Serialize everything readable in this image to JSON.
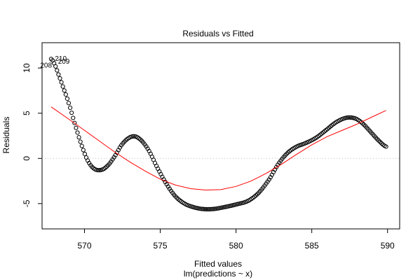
{
  "chart_data": {
    "type": "scatter",
    "title": "Residuals vs Fitted",
    "xlabel": "Fitted values",
    "subtitle": "lm(predictions ~ x)",
    "ylabel": "Residuals",
    "xlim": [
      567.2,
      590.8
    ],
    "ylim": [
      -7.8,
      12.8
    ],
    "xticks": [
      570,
      575,
      580,
      585,
      590
    ],
    "yticks": [
      -5,
      0,
      5,
      10
    ],
    "reference_line": {
      "y": 0,
      "color": "#bbbbbb",
      "style": "dotted"
    },
    "point_color": "#000000",
    "smooth_color": "#ff0000",
    "curve_knots": [
      {
        "x": 567.8,
        "y": 11.0
      },
      {
        "x": 568.0,
        "y": 10.5
      },
      {
        "x": 568.3,
        "y": 9.2
      },
      {
        "x": 568.6,
        "y": 7.8
      },
      {
        "x": 569.0,
        "y": 5.9
      },
      {
        "x": 569.4,
        "y": 3.6
      },
      {
        "x": 569.8,
        "y": 1.5
      },
      {
        "x": 570.2,
        "y": -0.2
      },
      {
        "x": 570.6,
        "y": -1.1
      },
      {
        "x": 571.0,
        "y": -1.3
      },
      {
        "x": 571.4,
        "y": -1.0
      },
      {
        "x": 571.9,
        "y": 0.0
      },
      {
        "x": 572.5,
        "y": 1.6
      },
      {
        "x": 573.1,
        "y": 2.4
      },
      {
        "x": 573.6,
        "y": 2.2
      },
      {
        "x": 574.2,
        "y": 1.0
      },
      {
        "x": 574.8,
        "y": -1.0
      },
      {
        "x": 575.4,
        "y": -2.8
      },
      {
        "x": 576.0,
        "y": -4.2
      },
      {
        "x": 576.6,
        "y": -5.0
      },
      {
        "x": 577.2,
        "y": -5.4
      },
      {
        "x": 577.8,
        "y": -5.6
      },
      {
        "x": 578.5,
        "y": -5.6
      },
      {
        "x": 579.2,
        "y": -5.4
      },
      {
        "x": 580.0,
        "y": -5.1
      },
      {
        "x": 580.8,
        "y": -4.7
      },
      {
        "x": 581.5,
        "y": -3.8
      },
      {
        "x": 582.2,
        "y": -2.3
      },
      {
        "x": 582.8,
        "y": -0.6
      },
      {
        "x": 583.4,
        "y": 0.6
      },
      {
        "x": 584.0,
        "y": 1.3
      },
      {
        "x": 584.6,
        "y": 1.7
      },
      {
        "x": 585.3,
        "y": 2.3
      },
      {
        "x": 586.0,
        "y": 3.2
      },
      {
        "x": 586.6,
        "y": 4.0
      },
      {
        "x": 587.3,
        "y": 4.5
      },
      {
        "x": 587.9,
        "y": 4.4
      },
      {
        "x": 588.4,
        "y": 3.8
      },
      {
        "x": 588.9,
        "y": 2.9
      },
      {
        "x": 589.4,
        "y": 2.0
      },
      {
        "x": 589.9,
        "y": 1.3
      }
    ],
    "point_count": 230,
    "smooth": {
      "x": [
        567.8,
        569.0,
        570.0,
        571.0,
        572.0,
        573.0,
        574.0,
        575.0,
        576.0,
        577.0,
        578.0,
        579.0,
        580.0,
        581.0,
        582.0,
        583.0,
        584.0,
        585.0,
        586.0,
        587.0,
        588.0,
        589.0,
        589.9
      ],
      "y": [
        5.7,
        4.3,
        3.1,
        1.9,
        0.7,
        -0.4,
        -1.4,
        -2.3,
        -2.95,
        -3.35,
        -3.5,
        -3.45,
        -3.1,
        -2.5,
        -1.65,
        -0.65,
        0.45,
        1.5,
        2.4,
        3.1,
        3.8,
        4.6,
        5.3
      ]
    },
    "annotations": [
      {
        "text": "208",
        "x": 567.85,
        "y": 10.3
      },
      {
        "text": "210",
        "x": 568.05,
        "y": 11.0
      },
      {
        "text": "209",
        "x": 568.25,
        "y": 10.7
      }
    ]
  }
}
